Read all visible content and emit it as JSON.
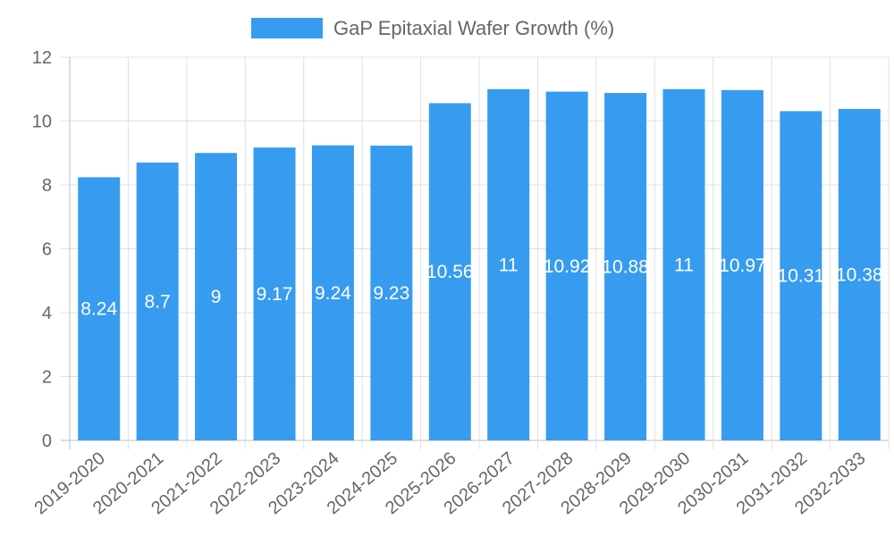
{
  "chart_data": {
    "type": "bar",
    "title": "",
    "legend": {
      "label": "GaP Epitaxial Wafer Growth (%)",
      "position": "top"
    },
    "categories": [
      "2019-2020",
      "2020-2021",
      "2021-2022",
      "2022-2023",
      "2023-2024",
      "2024-2025",
      "2025-2026",
      "2026-2027",
      "2027-2028",
      "2028-2029",
      "2029-2030",
      "2030-2031",
      "2031-2032",
      "2032-2033"
    ],
    "series": [
      {
        "name": "GaP Epitaxial Wafer Growth (%)",
        "values": [
          8.24,
          8.7,
          9,
          9.17,
          9.24,
          9.23,
          10.56,
          11,
          10.92,
          10.88,
          11,
          10.97,
          10.31,
          10.38
        ]
      }
    ],
    "xlabel": "",
    "ylabel": "",
    "ylim": [
      0,
      12
    ],
    "yticks": [
      0,
      2,
      4,
      6,
      8,
      10,
      12
    ],
    "grid": true,
    "data_labels": true,
    "colors": {
      "bar": "#379cf0",
      "grid": "#e0e0e0",
      "axis": "#bdbdbd",
      "text": "#666666"
    }
  }
}
